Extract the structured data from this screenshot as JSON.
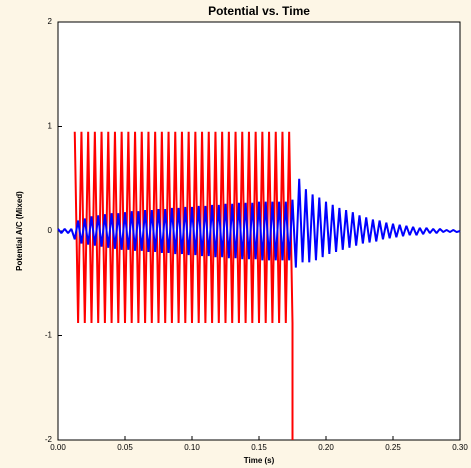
{
  "chart_data": {
    "type": "line",
    "title": "Potential vs. Time",
    "x_label": "Time (s)",
    "y_label": "Potential A/C (Mixed)",
    "xlim": [
      0,
      0.3
    ],
    "ylim": [
      -2,
      2
    ],
    "xticks": [
      {
        "value": 0,
        "label": "0.00"
      },
      {
        "value": 0.05,
        "label": "0.05"
      },
      {
        "value": 0.1,
        "label": "0.10"
      },
      {
        "value": 0.15,
        "label": "0.15"
      },
      {
        "value": 0.2,
        "label": "0.20"
      },
      {
        "value": 0.25,
        "label": "0.25"
      },
      {
        "value": 0.3,
        "label": "0.30"
      }
    ],
    "yticks": [
      -2,
      -1,
      0,
      1,
      2
    ],
    "series": [
      {
        "color": "#ff0000",
        "x": [
          0.0125,
          0.015,
          0.0175,
          0.02,
          0.0225,
          0.025,
          0.0275,
          0.03,
          0.0325,
          0.035,
          0.0375,
          0.04,
          0.0425,
          0.045,
          0.0475,
          0.05,
          0.0525,
          0.055,
          0.0575,
          0.06,
          0.0625,
          0.065,
          0.0675,
          0.07,
          0.0725,
          0.075,
          0.0775,
          0.08,
          0.0825,
          0.085,
          0.0875,
          0.09,
          0.0925,
          0.095,
          0.0975,
          0.1,
          0.1025,
          0.105,
          0.1075,
          0.11,
          0.1125,
          0.115,
          0.1175,
          0.12,
          0.1225,
          0.125,
          0.1275,
          0.13,
          0.1325,
          0.135,
          0.1375,
          0.14,
          0.1425,
          0.145,
          0.1475,
          0.15,
          0.1525,
          0.155,
          0.1575,
          0.16,
          0.1625,
          0.165,
          0.1675,
          0.17,
          0.1725,
          0.175,
          0.175
        ],
        "values": [
          0.95,
          -0.88,
          0.95,
          -0.88,
          0.95,
          -0.88,
          0.95,
          -0.88,
          0.95,
          -0.88,
          0.95,
          -0.88,
          0.95,
          -0.88,
          0.95,
          -0.88,
          0.95,
          -0.88,
          0.95,
          -0.88,
          0.95,
          -0.88,
          0.95,
          -0.88,
          0.95,
          -0.88,
          0.95,
          -0.88,
          0.95,
          -0.88,
          0.95,
          -0.88,
          0.95,
          -0.88,
          0.95,
          -0.88,
          0.95,
          -0.88,
          0.95,
          -0.88,
          0.95,
          -0.88,
          0.95,
          -0.88,
          0.95,
          -0.88,
          0.95,
          -0.88,
          0.95,
          -0.88,
          0.95,
          -0.88,
          0.95,
          -0.88,
          0.95,
          -0.88,
          0.95,
          -0.88,
          0.95,
          -0.88,
          0.95,
          -0.88,
          0.95,
          -0.88,
          0.95,
          -0.88,
          -2
        ]
      },
      {
        "color": "#0000ff",
        "x": [
          0,
          0.0025,
          0.005,
          0.0075,
          0.01,
          0.0125,
          0.015,
          0.0175,
          0.02,
          0.0225,
          0.025,
          0.0275,
          0.03,
          0.0325,
          0.035,
          0.0375,
          0.04,
          0.0425,
          0.045,
          0.0475,
          0.05,
          0.0525,
          0.055,
          0.0575,
          0.06,
          0.0625,
          0.065,
          0.0675,
          0.07,
          0.0725,
          0.075,
          0.0775,
          0.08,
          0.0825,
          0.085,
          0.0875,
          0.09,
          0.0925,
          0.095,
          0.0975,
          0.1,
          0.1025,
          0.105,
          0.1075,
          0.11,
          0.1125,
          0.115,
          0.1175,
          0.12,
          0.1225,
          0.125,
          0.1275,
          0.13,
          0.1325,
          0.135,
          0.1375,
          0.14,
          0.1425,
          0.145,
          0.1475,
          0.15,
          0.1525,
          0.155,
          0.1575,
          0.16,
          0.1625,
          0.165,
          0.1675,
          0.17,
          0.1725,
          0.175,
          0.1775,
          0.18,
          0.1825,
          0.185,
          0.1875,
          0.19,
          0.1925,
          0.195,
          0.1975,
          0.2,
          0.2025,
          0.205,
          0.2075,
          0.21,
          0.2125,
          0.215,
          0.2175,
          0.22,
          0.2225,
          0.225,
          0.2275,
          0.23,
          0.2325,
          0.235,
          0.2375,
          0.24,
          0.2425,
          0.245,
          0.2475,
          0.25,
          0.2525,
          0.255,
          0.2575,
          0.26,
          0.2625,
          0.265,
          0.2675,
          0.27,
          0.2725,
          0.275,
          0.2775,
          0.28,
          0.2825,
          0.285,
          0.2875,
          0.29,
          0.2925,
          0.295,
          0.2975,
          0.3
        ],
        "values": [
          0.02,
          -0.02,
          0.02,
          -0.02,
          0.02,
          -0.08,
          0.1,
          -0.12,
          0.12,
          -0.13,
          0.14,
          -0.14,
          0.15,
          -0.15,
          0.16,
          -0.16,
          0.17,
          -0.17,
          0.17,
          -0.18,
          0.18,
          -0.18,
          0.19,
          -0.19,
          0.19,
          -0.19,
          0.2,
          -0.2,
          0.2,
          -0.2,
          0.21,
          -0.21,
          0.21,
          -0.21,
          0.22,
          -0.22,
          0.22,
          -0.22,
          0.23,
          -0.23,
          0.23,
          -0.23,
          0.24,
          -0.24,
          0.24,
          -0.24,
          0.25,
          -0.25,
          0.25,
          -0.25,
          0.26,
          -0.26,
          0.26,
          -0.26,
          0.27,
          -0.27,
          0.27,
          -0.27,
          0.27,
          -0.27,
          0.28,
          -0.28,
          0.28,
          -0.28,
          0.28,
          -0.28,
          0.28,
          -0.28,
          0.28,
          -0.28,
          0.3,
          -0.35,
          0.5,
          -0.3,
          0.4,
          -0.3,
          0.35,
          -0.28,
          0.32,
          -0.25,
          0.28,
          -0.22,
          0.25,
          -0.2,
          0.22,
          -0.18,
          0.2,
          -0.16,
          0.18,
          -0.14,
          0.15,
          -0.12,
          0.13,
          -0.11,
          0.11,
          -0.1,
          0.1,
          -0.08,
          0.08,
          -0.07,
          0.07,
          -0.06,
          0.06,
          -0.05,
          0.05,
          -0.04,
          0.04,
          -0.04,
          0.03,
          -0.03,
          0.03,
          -0.02,
          0.02,
          -0.02,
          0.02,
          -0.01,
          0.01,
          -0.01,
          0.01,
          -0.01,
          0
        ]
      }
    ]
  }
}
